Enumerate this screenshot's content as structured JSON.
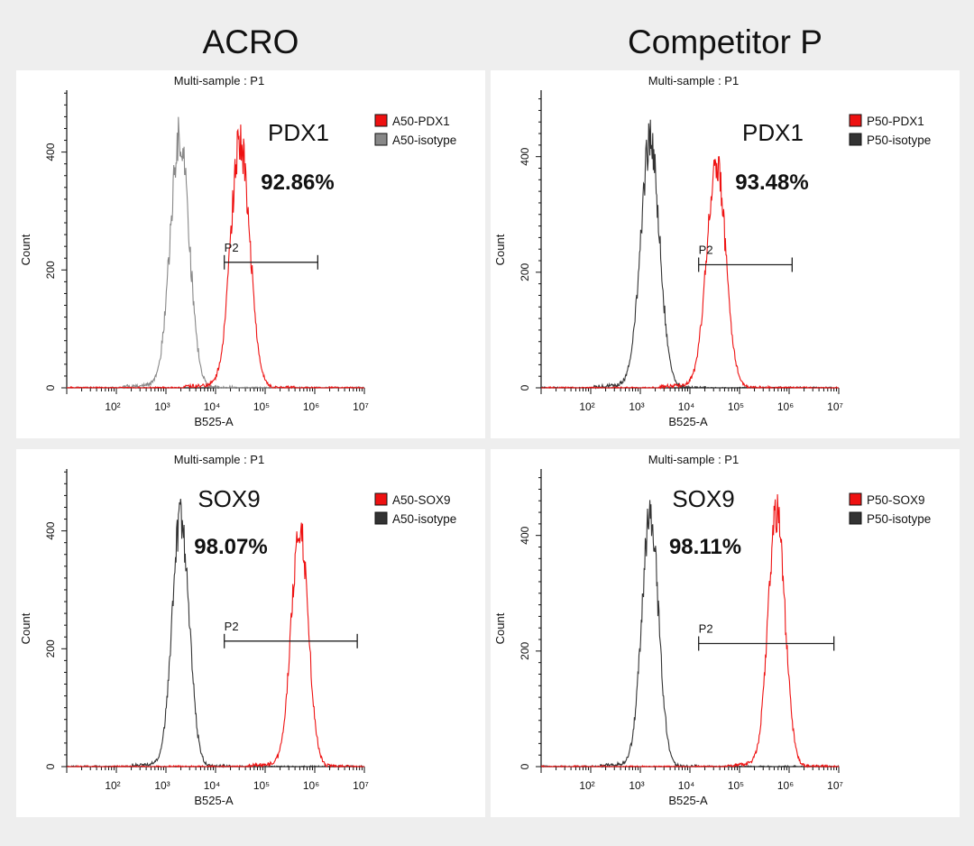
{
  "column_titles": [
    "ACRO",
    "Competitor P"
  ],
  "colors": {
    "sample": "#ee1111",
    "isotype_gray": "#888888",
    "isotype_dark": "#333333",
    "gate": "#222222"
  },
  "chart_data": [
    {
      "type": "histogram",
      "title": "Multi-sample : P1",
      "xlabel": "B525-A",
      "ylabel": "Count",
      "xscale": "log10",
      "xlim": [
        10,
        10000000
      ],
      "ylim": [
        0,
        505
      ],
      "yticks": [
        0,
        200,
        400
      ],
      "xticks": [
        "10²",
        "10³",
        "10⁴",
        "10⁵",
        "10⁶",
        "10⁷"
      ],
      "marker": "PDX1",
      "percent": "92.86%",
      "gate": {
        "label": "P2",
        "x_start": 15000,
        "x_end": 1150000,
        "y": 213
      },
      "legend": [
        {
          "name": "A50-PDX1",
          "color": "#ee1111"
        },
        {
          "name": "A50-isotype",
          "color": "#888888"
        }
      ],
      "series": [
        {
          "name": "A50-isotype",
          "color": "#888888",
          "center": 3.28,
          "sigma": 0.19,
          "peak": 420
        },
        {
          "name": "A50-PDX1",
          "color": "#ee1111",
          "center": 4.5,
          "sigma": 0.19,
          "peak": 418
        }
      ]
    },
    {
      "type": "histogram",
      "title": "Multi-sample : P1",
      "xlabel": "B525-A",
      "ylabel": "Count",
      "xscale": "log10",
      "xlim": [
        10,
        10000000
      ],
      "ylim": [
        0,
        515
      ],
      "yticks": [
        0,
        200,
        400
      ],
      "xticks": [
        "10²",
        "10³",
        "10⁴",
        "10⁵",
        "10⁶",
        "10⁷"
      ],
      "marker": "PDX1",
      "percent": "93.48%",
      "gate": {
        "label": "P2",
        "x_start": 15000,
        "x_end": 1150000,
        "y": 213
      },
      "legend": [
        {
          "name": "P50-PDX1",
          "color": "#ee1111"
        },
        {
          "name": "P50-isotype",
          "color": "#333333"
        }
      ],
      "series": [
        {
          "name": "P50-isotype",
          "color": "#333333",
          "center": 3.2,
          "sigma": 0.19,
          "peak": 425
        },
        {
          "name": "P50-PDX1",
          "color": "#ee1111",
          "center": 4.53,
          "sigma": 0.19,
          "peak": 390
        }
      ]
    },
    {
      "type": "histogram",
      "title": "Multi-sample : P1",
      "xlabel": "B525-A",
      "ylabel": "Count",
      "xscale": "log10",
      "xlim": [
        10,
        10000000
      ],
      "ylim": [
        0,
        505
      ],
      "yticks": [
        0,
        200,
        400
      ],
      "xticks": [
        "10²",
        "10³",
        "10⁴",
        "10⁵",
        "10⁶",
        "10⁷"
      ],
      "marker": "SOX9",
      "percent": "98.07%",
      "gate": {
        "label": "P2",
        "x_start": 15000,
        "x_end": 7200000,
        "y": 213
      },
      "legend": [
        {
          "name": "A50-SOX9",
          "color": "#ee1111"
        },
        {
          "name": "A50-isotype",
          "color": "#333333"
        }
      ],
      "series": [
        {
          "name": "A50-isotype",
          "color": "#333333",
          "center": 3.3,
          "sigma": 0.17,
          "peak": 420
        },
        {
          "name": "A50-SOX9",
          "color": "#ee1111",
          "center": 5.7,
          "sigma": 0.17,
          "peak": 402
        }
      ]
    },
    {
      "type": "histogram",
      "title": "Multi-sample : P1",
      "xlabel": "B525-A",
      "ylabel": "Count",
      "xscale": "log10",
      "xlim": [
        10,
        10000000
      ],
      "ylim": [
        0,
        515
      ],
      "yticks": [
        0,
        200,
        400
      ],
      "xticks": [
        "10²",
        "10³",
        "10⁴",
        "10⁵",
        "10⁶",
        "10⁷"
      ],
      "marker": "SOX9",
      "percent": "98.11%",
      "gate": {
        "label": "P2",
        "x_start": 15000,
        "x_end": 8000000,
        "y": 213
      },
      "legend": [
        {
          "name": "P50-SOX9",
          "color": "#ee1111"
        },
        {
          "name": "P50-isotype",
          "color": "#333333"
        }
      ],
      "series": [
        {
          "name": "P50-isotype",
          "color": "#333333",
          "center": 3.2,
          "sigma": 0.17,
          "peak": 430
        },
        {
          "name": "P50-SOX9",
          "color": "#ee1111",
          "center": 5.75,
          "sigma": 0.17,
          "peak": 436
        }
      ]
    }
  ]
}
